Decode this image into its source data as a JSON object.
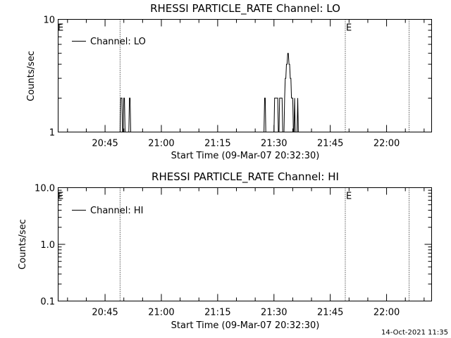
{
  "chart_data": [
    {
      "type": "line",
      "title": "RHESSI PARTICLE_RATE Channel: LO",
      "xlabel": "Start Time (09-Mar-07 20:32:30)",
      "ylabel": "Counts/sec",
      "yscale": "log",
      "ylim": [
        1,
        10
      ],
      "y_tick_labels": [
        "1",
        "10"
      ],
      "xlim": [
        "20:32:30",
        "22:12:00"
      ],
      "x_tick_labels": [
        "20:45",
        "21:00",
        "21:15",
        "21:30",
        "21:45",
        "22:00"
      ],
      "legend": {
        "position": "top-left",
        "entries": [
          "Channel: LO"
        ]
      },
      "markers": [
        {
          "time": "20:49:00",
          "label": "E"
        },
        {
          "time": "21:49:00",
          "label": ""
        },
        {
          "time": "22:06:00",
          "label": ""
        }
      ],
      "edge_labels": [
        {
          "position": "left",
          "label": "E"
        },
        {
          "position": "right-marker",
          "label": "E"
        }
      ],
      "series": [
        {
          "name": "Channel: LO",
          "x": [
            "20:49:00",
            "20:49:10",
            "20:49:20",
            "20:49:30",
            "20:49:40",
            "20:49:50",
            "20:50:00",
            "20:50:10",
            "20:50:20",
            "20:50:30",
            "20:50:40",
            "20:50:50",
            "20:51:00",
            "20:51:10",
            "20:51:20",
            "20:51:30",
            "20:51:40",
            "20:51:50",
            "20:52:00",
            "20:52:10",
            "20:52:20",
            "20:52:30",
            "20:52:40",
            "20:52:50",
            "20:53:00",
            "20:53:10",
            "20:53:20",
            "20:53:30",
            "21:27:20",
            "21:27:30",
            "21:27:40",
            "21:27:50",
            "21:28:00",
            "21:28:10",
            "21:28:20",
            "21:28:30",
            "21:28:40",
            "21:28:50",
            "21:29:00",
            "21:29:10",
            "21:29:20",
            "21:29:30",
            "21:29:40",
            "21:29:50",
            "21:30:00",
            "21:30:10",
            "21:30:20",
            "21:30:30",
            "21:30:40",
            "21:30:50",
            "21:31:00",
            "21:31:10",
            "21:31:20",
            "21:31:30",
            "21:31:40",
            "21:31:50",
            "21:32:00",
            "21:32:10",
            "21:32:20",
            "21:32:30",
            "21:32:40",
            "21:32:50",
            "21:33:00",
            "21:33:10",
            "21:33:20",
            "21:33:30",
            "21:33:40",
            "21:33:50",
            "21:34:00",
            "21:34:10",
            "21:34:20",
            "21:34:30",
            "21:34:40",
            "21:34:50",
            "21:35:00",
            "21:35:10",
            "21:35:20",
            "21:35:30",
            "21:35:40",
            "21:35:50",
            "21:36:00",
            "21:36:10",
            "21:36:20",
            "21:36:30",
            "21:36:40",
            "21:36:50",
            "21:37:00",
            "21:37:10",
            "21:37:20",
            "21:37:30",
            "21:37:40",
            "21:37:50",
            "21:38:00",
            "21:38:10",
            "21:38:20",
            "21:38:30",
            "21:38:40",
            "21:38:50",
            "21:39:00",
            "21:39:10",
            "21:39:20",
            "21:39:30",
            "21:39:40",
            "21:39:50",
            "21:40:00",
            "21:40:10",
            "21:40:20"
          ],
          "values": [
            1,
            2,
            2,
            2,
            1,
            1,
            2,
            2,
            1,
            1,
            1,
            1,
            1,
            1,
            1,
            2,
            2,
            1,
            1,
            1,
            1,
            1,
            1,
            1,
            1,
            1,
            1,
            1,
            1,
            2,
            2,
            1,
            1,
            1,
            1,
            1,
            1,
            1,
            1,
            1,
            1,
            1,
            1,
            1,
            1,
            2,
            2,
            2,
            2,
            2,
            2,
            1,
            1,
            2,
            2,
            2,
            2,
            2,
            1,
            1,
            1,
            2,
            3,
            3,
            4,
            4,
            5,
            5,
            4,
            4,
            3,
            3,
            2,
            2,
            2,
            1,
            1,
            2,
            1,
            1,
            1,
            1,
            2,
            1,
            1,
            1,
            1,
            1,
            1,
            1,
            1,
            1,
            1,
            1,
            1,
            1,
            1,
            1,
            1,
            1,
            1,
            1,
            1,
            1,
            1,
            1,
            1
          ]
        }
      ]
    },
    {
      "type": "line",
      "title": "RHESSI PARTICLE_RATE Channel: HI",
      "xlabel": "Start Time (09-Mar-07 20:32:30)",
      "ylabel": "Counts/sec",
      "yscale": "log",
      "ylim": [
        0.1,
        10
      ],
      "y_tick_labels": [
        "0.1",
        "1.0",
        "10.0"
      ],
      "xlim": [
        "20:32:30",
        "22:12:00"
      ],
      "x_tick_labels": [
        "20:45",
        "21:00",
        "21:15",
        "21:30",
        "21:45",
        "22:00"
      ],
      "legend": {
        "position": "top-left",
        "entries": [
          "Channel: HI"
        ]
      },
      "markers": [
        {
          "time": "20:49:00",
          "label": "E"
        },
        {
          "time": "21:49:00",
          "label": ""
        },
        {
          "time": "22:06:00",
          "label": ""
        }
      ],
      "edge_labels": [
        {
          "position": "left",
          "label": "E"
        },
        {
          "position": "right-marker",
          "label": "E"
        }
      ],
      "series": [
        {
          "name": "Channel: HI",
          "x": [],
          "values": []
        }
      ]
    }
  ],
  "footer": {
    "timestamp": "14-Oct-2021 11:35"
  }
}
